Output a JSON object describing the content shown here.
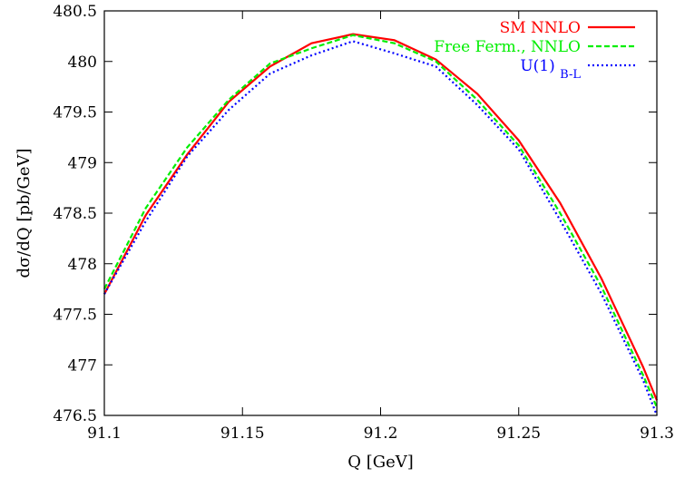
{
  "chart_data": {
    "type": "line",
    "xlabel": "Q  [GeV]",
    "ylabel": "dσ/dQ [pb/GeV]",
    "xlim": [
      91.1,
      91.3
    ],
    "ylim": [
      476.5,
      480.5
    ],
    "xticks": [
      91.1,
      91.15,
      91.2,
      91.25,
      91.3
    ],
    "xtick_labels": [
      "91.1",
      "91.15",
      "91.2",
      "91.25",
      "91.3"
    ],
    "yticks": [
      476.5,
      477,
      477.5,
      478,
      478.5,
      479,
      479.5,
      480,
      480.5
    ],
    "ytick_labels": [
      "476.5",
      "477",
      "477.5",
      "478",
      "478.5",
      "479",
      "479.5",
      "480",
      "480.5"
    ],
    "grid": false,
    "legend_position": "top-right",
    "x": [
      91.1,
      91.115,
      91.13,
      91.145,
      91.16,
      91.175,
      91.19,
      91.205,
      91.22,
      91.235,
      91.25,
      91.265,
      91.28,
      91.295,
      91.3
    ],
    "series": [
      {
        "name": "SM NNLO",
        "color": "#ff0000",
        "style": "solid",
        "values": [
          477.7,
          478.48,
          479.08,
          479.6,
          479.95,
          480.18,
          480.27,
          480.21,
          480.02,
          479.68,
          479.22,
          478.6,
          477.85,
          476.98,
          476.65
        ]
      },
      {
        "name": "Free Ferm., NNLO",
        "label_parts": [
          "Free Ferm., NNLO"
        ],
        "color": "#00ee00",
        "style": "dashed",
        "values": [
          477.75,
          478.55,
          479.15,
          479.62,
          479.98,
          480.13,
          480.26,
          480.18,
          480.0,
          479.62,
          479.17,
          478.5,
          477.77,
          476.9,
          476.58
        ]
      },
      {
        "name": "U(1)B-L",
        "label_base": "U(1)",
        "label_sub": "B-L",
        "color": "#0000ff",
        "style": "dotted",
        "values": [
          477.7,
          478.42,
          479.06,
          479.52,
          479.88,
          480.06,
          480.2,
          480.08,
          479.95,
          479.57,
          479.13,
          478.43,
          477.7,
          476.85,
          476.5
        ]
      }
    ]
  }
}
